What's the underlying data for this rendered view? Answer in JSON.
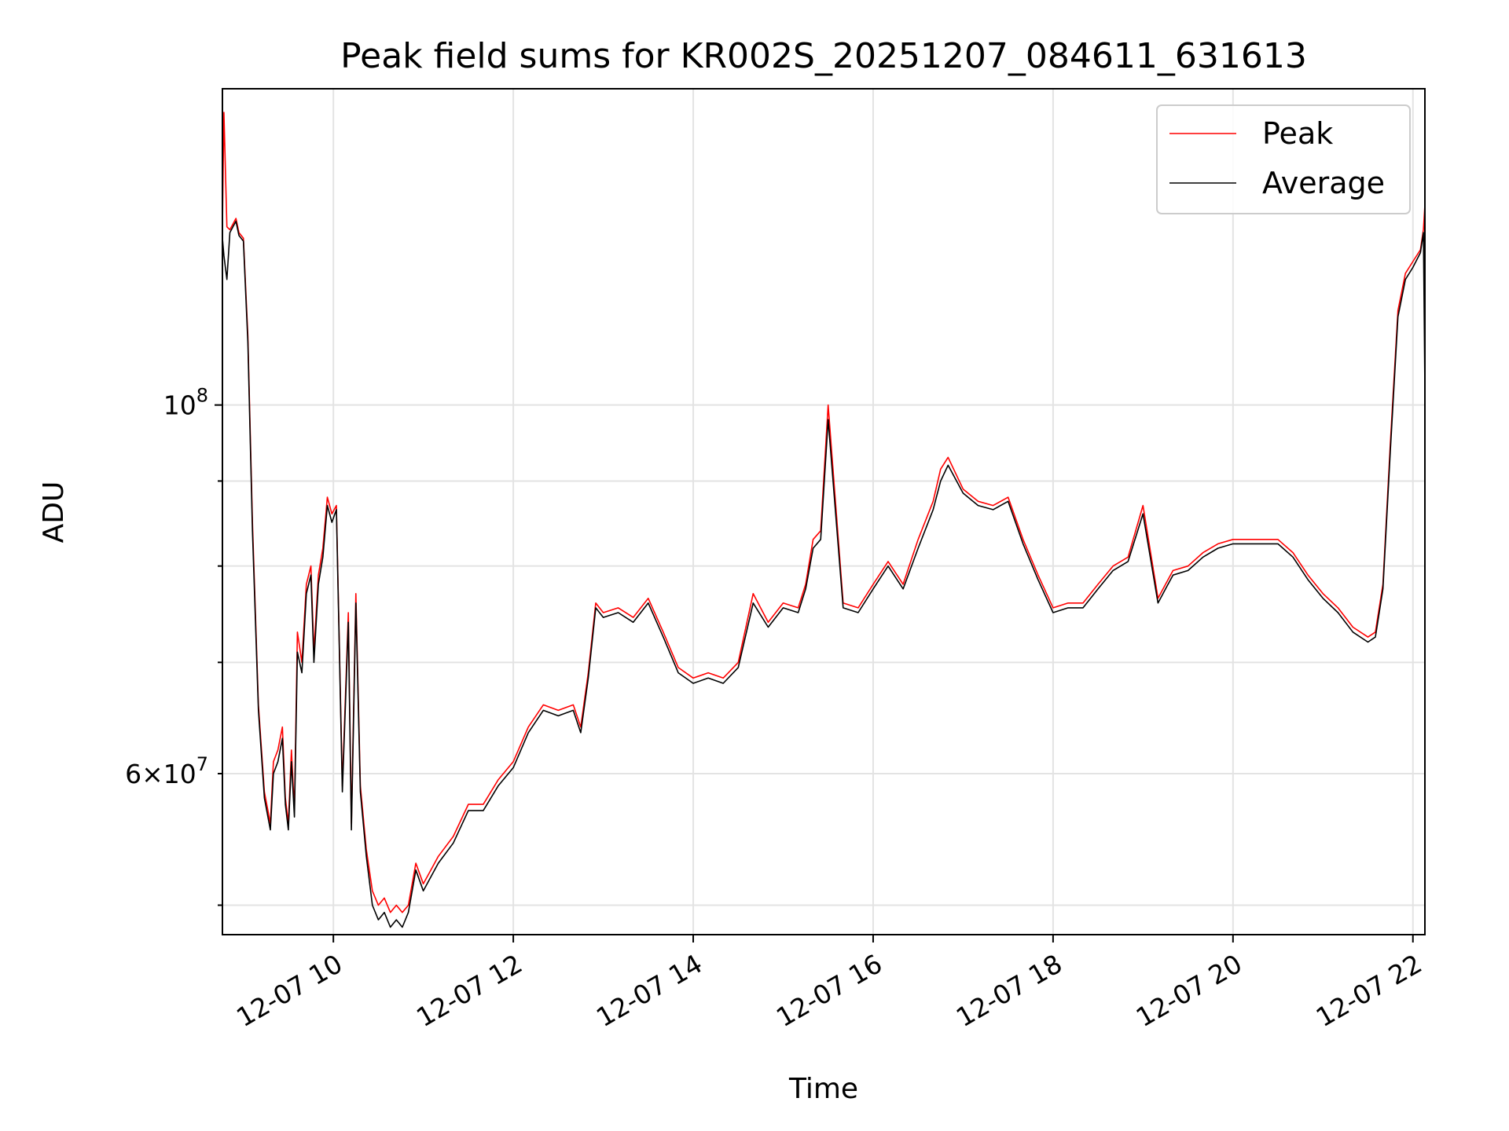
{
  "chart_data": {
    "type": "line",
    "title": "Peak field sums for KR002S_20251207_084611_631613",
    "xlabel": "Time",
    "ylabel": "ADU",
    "x_ticks": [
      "12-07 10",
      "12-07 12",
      "12-07 14",
      "12-07 16",
      "12-07 18",
      "12-07 20",
      "12-07 22"
    ],
    "y_tick_labels": {
      "major": "10",
      "major_exp": "8",
      "minor_coef": "6",
      "minor_sep": "×",
      "minor_base": "10",
      "minor_exp": "7"
    },
    "y_scale": "log",
    "xlim": [
      "2025-12-07 08:46",
      "2025-12-07 22:08"
    ],
    "ylim": [
      48000000,
      155000000
    ],
    "grid": true,
    "legend_position": "upper right",
    "series": [
      {
        "name": "Peak",
        "color": "#ff0000",
        "x": [
          "2025-12-07 08:46",
          "2025-12-07 08:47",
          "2025-12-07 08:49",
          "2025-12-07 08:51",
          "2025-12-07 08:53",
          "2025-12-07 08:55",
          "2025-12-07 08:57",
          "2025-12-07 09:00",
          "2025-12-07 09:03",
          "2025-12-07 09:06",
          "2025-12-07 09:10",
          "2025-12-07 09:14",
          "2025-12-07 09:18",
          "2025-12-07 09:20",
          "2025-12-07 09:23",
          "2025-12-07 09:26",
          "2025-12-07 09:28",
          "2025-12-07 09:30",
          "2025-12-07 09:32",
          "2025-12-07 09:34",
          "2025-12-07 09:36",
          "2025-12-07 09:39",
          "2025-12-07 09:42",
          "2025-12-07 09:45",
          "2025-12-07 09:47",
          "2025-12-07 09:50",
          "2025-12-07 09:53",
          "2025-12-07 09:56",
          "2025-12-07 09:59",
          "2025-12-07 10:02",
          "2025-12-07 10:06",
          "2025-12-07 10:10",
          "2025-12-07 10:12",
          "2025-12-07 10:15",
          "2025-12-07 10:18",
          "2025-12-07 10:22",
          "2025-12-07 10:26",
          "2025-12-07 10:30",
          "2025-12-07 10:34",
          "2025-12-07 10:38",
          "2025-12-07 10:42",
          "2025-12-07 10:46",
          "2025-12-07 10:50",
          "2025-12-07 10:55",
          "2025-12-07 11:00",
          "2025-12-07 11:05",
          "2025-12-07 11:10",
          "2025-12-07 11:20",
          "2025-12-07 11:30",
          "2025-12-07 11:40",
          "2025-12-07 11:50",
          "2025-12-07 12:00",
          "2025-12-07 12:10",
          "2025-12-07 12:20",
          "2025-12-07 12:30",
          "2025-12-07 12:40",
          "2025-12-07 12:45",
          "2025-12-07 12:50",
          "2025-12-07 12:55",
          "2025-12-07 13:00",
          "2025-12-07 13:10",
          "2025-12-07 13:20",
          "2025-12-07 13:30",
          "2025-12-07 13:40",
          "2025-12-07 13:50",
          "2025-12-07 14:00",
          "2025-12-07 14:10",
          "2025-12-07 14:20",
          "2025-12-07 14:30",
          "2025-12-07 14:40",
          "2025-12-07 14:50",
          "2025-12-07 15:00",
          "2025-12-07 15:10",
          "2025-12-07 15:15",
          "2025-12-07 15:20",
          "2025-12-07 15:25",
          "2025-12-07 15:30",
          "2025-12-07 15:40",
          "2025-12-07 15:50",
          "2025-12-07 16:00",
          "2025-12-07 16:10",
          "2025-12-07 16:20",
          "2025-12-07 16:30",
          "2025-12-07 16:40",
          "2025-12-07 16:45",
          "2025-12-07 16:50",
          "2025-12-07 17:00",
          "2025-12-07 17:10",
          "2025-12-07 17:20",
          "2025-12-07 17:30",
          "2025-12-07 17:40",
          "2025-12-07 17:50",
          "2025-12-07 18:00",
          "2025-12-07 18:10",
          "2025-12-07 18:20",
          "2025-12-07 18:30",
          "2025-12-07 18:40",
          "2025-12-07 18:50",
          "2025-12-07 19:00",
          "2025-12-07 19:10",
          "2025-12-07 19:15",
          "2025-12-07 19:20",
          "2025-12-07 19:30",
          "2025-12-07 19:40",
          "2025-12-07 19:50",
          "2025-12-07 20:00",
          "2025-12-07 20:10",
          "2025-12-07 20:20",
          "2025-12-07 20:30",
          "2025-12-07 20:40",
          "2025-12-07 20:50",
          "2025-12-07 21:00",
          "2025-12-07 21:10",
          "2025-12-07 21:20",
          "2025-12-07 21:30",
          "2025-12-07 21:35",
          "2025-12-07 21:40",
          "2025-12-07 21:45",
          "2025-12-07 21:50",
          "2025-12-07 21:55",
          "2025-12-07 22:00",
          "2025-12-07 22:05",
          "2025-12-07 22:07",
          "2025-12-07 22:08"
        ],
        "y": [
          128000000,
          150000000,
          128000000,
          127500000,
          128500000,
          129500000,
          127000000,
          126000000,
          110000000,
          85000000,
          66000000,
          58500000,
          56000000,
          61000000,
          62000000,
          64000000,
          58000000,
          56000000,
          62000000,
          57000000,
          73000000,
          70000000,
          78000000,
          80000000,
          71000000,
          79000000,
          82000000,
          88000000,
          86000000,
          87000000,
          59000000,
          75000000,
          56000000,
          77000000,
          59000000,
          54000000,
          51000000,
          50000000,
          50500000,
          49500000,
          50000000,
          49500000,
          50000000,
          53000000,
          51500000,
          52500000,
          53500000,
          55000000,
          57500000,
          57500000,
          59500000,
          61000000,
          64000000,
          66000000,
          65500000,
          66000000,
          64000000,
          69000000,
          76000000,
          75000000,
          75500000,
          74500000,
          76500000,
          73000000,
          69500000,
          68500000,
          69000000,
          68500000,
          70000000,
          77000000,
          74000000,
          76000000,
          75500000,
          78000000,
          83000000,
          84000000,
          100000000,
          76000000,
          75500000,
          78000000,
          80500000,
          78000000,
          83000000,
          87500000,
          91500000,
          93000000,
          89000000,
          87500000,
          87000000,
          88000000,
          83000000,
          79000000,
          75500000,
          76000000,
          76000000,
          78000000,
          80000000,
          81000000,
          87000000,
          76500000,
          78000000,
          79500000,
          80000000,
          81500000,
          82500000,
          83000000,
          83000000,
          83000000,
          83000000,
          81500000,
          79000000,
          77000000,
          75500000,
          73500000,
          72500000,
          73000000,
          78000000,
          95000000,
          114000000,
          120000000,
          122000000,
          124000000,
          127500000,
          132000000
        ]
      },
      {
        "name": "Average",
        "color": "#000000",
        "x": [
          "2025-12-07 08:46",
          "2025-12-07 08:47",
          "2025-12-07 08:49",
          "2025-12-07 08:51",
          "2025-12-07 08:53",
          "2025-12-07 08:55",
          "2025-12-07 08:57",
          "2025-12-07 09:00",
          "2025-12-07 09:03",
          "2025-12-07 09:06",
          "2025-12-07 09:10",
          "2025-12-07 09:14",
          "2025-12-07 09:18",
          "2025-12-07 09:20",
          "2025-12-07 09:23",
          "2025-12-07 09:26",
          "2025-12-07 09:28",
          "2025-12-07 09:30",
          "2025-12-07 09:32",
          "2025-12-07 09:34",
          "2025-12-07 09:36",
          "2025-12-07 09:39",
          "2025-12-07 09:42",
          "2025-12-07 09:45",
          "2025-12-07 09:47",
          "2025-12-07 09:50",
          "2025-12-07 09:53",
          "2025-12-07 09:56",
          "2025-12-07 09:59",
          "2025-12-07 10:02",
          "2025-12-07 10:06",
          "2025-12-07 10:10",
          "2025-12-07 10:12",
          "2025-12-07 10:15",
          "2025-12-07 10:18",
          "2025-12-07 10:22",
          "2025-12-07 10:26",
          "2025-12-07 10:30",
          "2025-12-07 10:34",
          "2025-12-07 10:38",
          "2025-12-07 10:42",
          "2025-12-07 10:46",
          "2025-12-07 10:50",
          "2025-12-07 10:55",
          "2025-12-07 11:00",
          "2025-12-07 11:05",
          "2025-12-07 11:10",
          "2025-12-07 11:20",
          "2025-12-07 11:30",
          "2025-12-07 11:40",
          "2025-12-07 11:50",
          "2025-12-07 12:00",
          "2025-12-07 12:10",
          "2025-12-07 12:20",
          "2025-12-07 12:30",
          "2025-12-07 12:40",
          "2025-12-07 12:45",
          "2025-12-07 12:50",
          "2025-12-07 12:55",
          "2025-12-07 13:00",
          "2025-12-07 13:10",
          "2025-12-07 13:20",
          "2025-12-07 13:30",
          "2025-12-07 13:40",
          "2025-12-07 13:50",
          "2025-12-07 14:00",
          "2025-12-07 14:10",
          "2025-12-07 14:20",
          "2025-12-07 14:30",
          "2025-12-07 14:40",
          "2025-12-07 14:50",
          "2025-12-07 15:00",
          "2025-12-07 15:10",
          "2025-12-07 15:15",
          "2025-12-07 15:20",
          "2025-12-07 15:25",
          "2025-12-07 15:30",
          "2025-12-07 15:40",
          "2025-12-07 15:50",
          "2025-12-07 16:00",
          "2025-12-07 16:10",
          "2025-12-07 16:20",
          "2025-12-07 16:30",
          "2025-12-07 16:40",
          "2025-12-07 16:45",
          "2025-12-07 16:50",
          "2025-12-07 17:00",
          "2025-12-07 17:10",
          "2025-12-07 17:20",
          "2025-12-07 17:30",
          "2025-12-07 17:40",
          "2025-12-07 17:50",
          "2025-12-07 18:00",
          "2025-12-07 18:10",
          "2025-12-07 18:20",
          "2025-12-07 18:30",
          "2025-12-07 18:40",
          "2025-12-07 18:50",
          "2025-12-07 19:00",
          "2025-12-07 19:10",
          "2025-12-07 19:15",
          "2025-12-07 19:20",
          "2025-12-07 19:30",
          "2025-12-07 19:40",
          "2025-12-07 19:50",
          "2025-12-07 20:00",
          "2025-12-07 20:10",
          "2025-12-07 20:20",
          "2025-12-07 20:30",
          "2025-12-07 20:40",
          "2025-12-07 20:50",
          "2025-12-07 21:00",
          "2025-12-07 21:10",
          "2025-12-07 21:20",
          "2025-12-07 21:30",
          "2025-12-07 21:35",
          "2025-12-07 21:40",
          "2025-12-07 21:45",
          "2025-12-07 21:50",
          "2025-12-07 21:55",
          "2025-12-07 22:00",
          "2025-12-07 22:05",
          "2025-12-07 22:07",
          "2025-12-07 22:08"
        ],
        "y": [
          126000000,
          123000000,
          119000000,
          127000000,
          128000000,
          129000000,
          126500000,
          125500000,
          109000000,
          84000000,
          65500000,
          58000000,
          55500000,
          60000000,
          61000000,
          63000000,
          57500000,
          55500000,
          61000000,
          56500000,
          71000000,
          69000000,
          77000000,
          79000000,
          70000000,
          78000000,
          81000000,
          87000000,
          85000000,
          86500000,
          58500000,
          74000000,
          55500000,
          76000000,
          58500000,
          53500000,
          50000000,
          49000000,
          49500000,
          48500000,
          49000000,
          48500000,
          49500000,
          52500000,
          51000000,
          52000000,
          53000000,
          54500000,
          57000000,
          57000000,
          59000000,
          60500000,
          63500000,
          65500000,
          65000000,
          65500000,
          63500000,
          68500000,
          75500000,
          74500000,
          75000000,
          74000000,
          76000000,
          72500000,
          69000000,
          68000000,
          68500000,
          68000000,
          69500000,
          76000000,
          73500000,
          75500000,
          75000000,
          77500000,
          82000000,
          83000000,
          98000000,
          75500000,
          75000000,
          77500000,
          80000000,
          77500000,
          82000000,
          86500000,
          90000000,
          92000000,
          88500000,
          87000000,
          86500000,
          87500000,
          82500000,
          78500000,
          75000000,
          75500000,
          75500000,
          77500000,
          79500000,
          80500000,
          86000000,
          76000000,
          77500000,
          79000000,
          79500000,
          81000000,
          82000000,
          82500000,
          82500000,
          82500000,
          82500000,
          81000000,
          78500000,
          76500000,
          75000000,
          73000000,
          72000000,
          72500000,
          77500000,
          94000000,
          113000000,
          119000000,
          121000000,
          123500000,
          127000000,
          102000000
        ]
      }
    ]
  }
}
